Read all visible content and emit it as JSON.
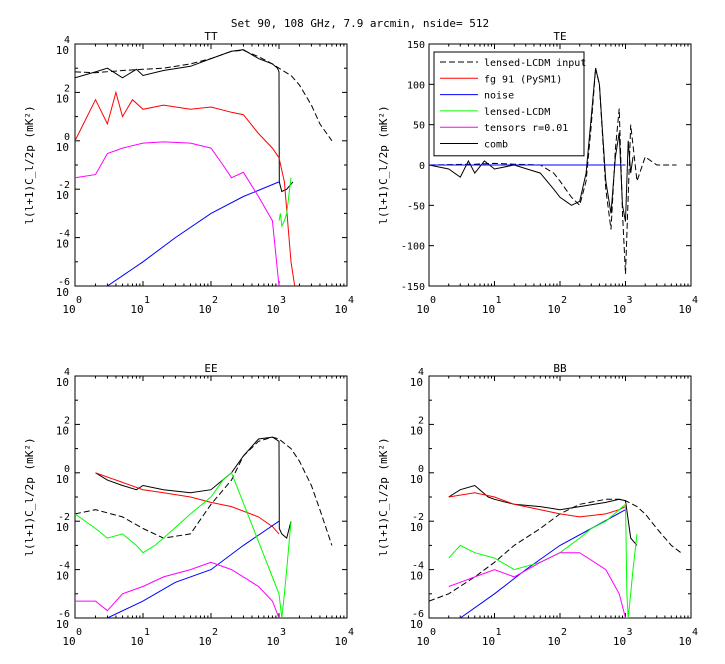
{
  "figure": {
    "title": "Set 90, 108 GHz,  7.9 arcmin, nside= 512"
  },
  "colors": {
    "lensed_input": "#000000",
    "fg": "#ff0000",
    "noise": "#0000ff",
    "lensed": "#00ff00",
    "tensors": "#ff00ff",
    "comb": "#000000"
  },
  "chart_data": [
    {
      "id": "TT",
      "type": "line",
      "title": "TT",
      "xscale": "log",
      "xlim": [
        1,
        10000
      ],
      "yscale": "log",
      "ylim": [
        1e-06,
        10000
      ],
      "xtick_labels": [
        "0",
        "1",
        "2",
        "3",
        "4"
      ],
      "ytick_labels": [
        "-6",
        "-4",
        "-2",
        "0",
        "2",
        "4"
      ],
      "ylabel": "l(l+1)C_l/2p (mK²)",
      "legend": null,
      "series": [
        {
          "key": "lensed_input",
          "dash": true,
          "x": [
            1,
            2,
            5,
            10,
            20,
            50,
            100,
            200,
            300,
            500,
            800,
            1000,
            1500,
            2000,
            3000,
            4000,
            6000
          ],
          "y": [
            700,
            650,
            800,
            900,
            1000,
            1500,
            2500,
            5000,
            5500,
            3000,
            1500,
            1000,
            500,
            200,
            30,
            5,
            1
          ]
        },
        {
          "key": "comb",
          "x": [
            1,
            2,
            3,
            5,
            8,
            10,
            20,
            50,
            100,
            200,
            300,
            500,
            800,
            950,
            1000,
            1010,
            1100,
            1300,
            1600
          ],
          "y": [
            400,
            700,
            1000,
            400,
            900,
            500,
            800,
            1200,
            2500,
            5000,
            5800,
            2500,
            1500,
            1000,
            700,
            0.02,
            0.008,
            0.01,
            0.02
          ]
        },
        {
          "key": "fg",
          "x": [
            1,
            2,
            3,
            4,
            5,
            7,
            10,
            20,
            50,
            100,
            200,
            300,
            500,
            800,
            1000,
            1200,
            1500,
            1700
          ],
          "y": [
            1,
            50,
            5,
            100,
            10,
            50,
            20,
            30,
            20,
            25,
            15,
            12,
            2,
            0.5,
            0.2,
            0.02,
            1e-05,
            1e-06
          ]
        },
        {
          "key": "noise",
          "x": [
            3,
            10,
            30,
            100,
            300,
            1000
          ],
          "y": [
            1e-06,
            1e-05,
            0.0001,
            0.001,
            0.005,
            0.02
          ]
        },
        {
          "key": "lensed",
          "x": [
            1000,
            1050,
            1100,
            1200,
            1300,
            1500
          ],
          "y": [
            0.0005,
            0.001,
            0.0003,
            0.0005,
            0.001,
            0.03
          ]
        },
        {
          "key": "tensors",
          "x": [
            1,
            2,
            3,
            5,
            10,
            20,
            50,
            100,
            150,
            200,
            300,
            500,
            800,
            1000
          ],
          "y": [
            0.03,
            0.04,
            0.3,
            0.5,
            0.8,
            0.9,
            0.8,
            0.5,
            0.1,
            0.03,
            0.05,
            0.005,
            0.0005,
            1e-06
          ]
        }
      ]
    },
    {
      "id": "TE",
      "type": "line",
      "title": "TE",
      "xscale": "log",
      "xlim": [
        1,
        10000
      ],
      "yscale": "linear",
      "ylim": [
        -150,
        150
      ],
      "xtick_labels": [
        "0",
        "1",
        "2",
        "3",
        "4"
      ],
      "ytick_labels": [
        "-150",
        "-100",
        "-50",
        "0",
        "50",
        "100",
        "150"
      ],
      "ylabel": "l(l+1)C_l/2p (mK²)",
      "legend": {
        "position": "top-left",
        "entries": [
          {
            "key": "lensed_input",
            "label": "lensed-LCDM input",
            "dash": true
          },
          {
            "key": "fg",
            "label": "fg 91 (PySM1)"
          },
          {
            "key": "noise",
            "label": "noise"
          },
          {
            "key": "lensed",
            "label": "lensed-LCDM"
          },
          {
            "key": "tensors",
            "label": "tensors r=0.01"
          },
          {
            "key": "comb",
            "label": "comb"
          }
        ]
      },
      "series": [
        {
          "key": "lensed_input",
          "dash": true,
          "x": [
            1,
            5,
            10,
            20,
            50,
            80,
            100,
            150,
            200,
            250,
            300,
            350,
            400,
            500,
            600,
            700,
            800,
            900,
            1000,
            1200,
            1500,
            2000,
            3000,
            6000
          ],
          "y": [
            0,
            1,
            2,
            1,
            0,
            -10,
            -20,
            -40,
            -50,
            -20,
            50,
            120,
            100,
            -30,
            -80,
            20,
            70,
            -60,
            -135,
            50,
            -20,
            10,
            0,
            0
          ]
        },
        {
          "key": "comb",
          "x": [
            1,
            2,
            3,
            4,
            5,
            7,
            10,
            20,
            50,
            80,
            100,
            150,
            200,
            250,
            300,
            350,
            400,
            500,
            600,
            700,
            800,
            900,
            1000,
            1100,
            1200,
            1300
          ],
          "y": [
            0,
            -5,
            -15,
            5,
            -10,
            5,
            -5,
            0,
            -10,
            -30,
            -40,
            -50,
            -45,
            -10,
            60,
            120,
            100,
            -20,
            -60,
            10,
            40,
            -50,
            -70,
            30,
            -10,
            10
          ]
        },
        {
          "key": "fg",
          "x": [
            1,
            10,
            100,
            1000
          ],
          "y": [
            0,
            0,
            0,
            0
          ]
        },
        {
          "key": "lensed",
          "x": [
            1,
            10,
            100,
            1000
          ],
          "y": [
            0,
            0,
            0,
            0
          ]
        },
        {
          "key": "tensors",
          "x": [
            1,
            10,
            100,
            1000
          ],
          "y": [
            0,
            0,
            0,
            0
          ]
        },
        {
          "key": "noise",
          "x": [
            1,
            10,
            100,
            1000
          ],
          "y": [
            0,
            0,
            0,
            0
          ]
        }
      ]
    },
    {
      "id": "EE",
      "type": "line",
      "title": "EE",
      "xscale": "log",
      "xlim": [
        1,
        10000
      ],
      "yscale": "log",
      "ylim": [
        1e-06,
        10000
      ],
      "xtick_labels": [
        "0",
        "1",
        "2",
        "3",
        "4"
      ],
      "ytick_labels": [
        "-6",
        "-4",
        "-2",
        "0",
        "2",
        "4"
      ],
      "ylabel": "l(l+1)C_l/2p (mK²)",
      "legend": null,
      "series": [
        {
          "key": "lensed_input",
          "dash": true,
          "x": [
            1,
            2,
            5,
            10,
            20,
            50,
            100,
            200,
            300,
            500,
            800,
            1000,
            1500,
            2000,
            3000,
            4000,
            6000
          ],
          "y": [
            0.02,
            0.03,
            0.015,
            0.005,
            0.002,
            0.003,
            0.05,
            0.5,
            5,
            20,
            30,
            25,
            10,
            3,
            0.3,
            0.03,
            0.001
          ]
        },
        {
          "key": "comb",
          "x": [
            2,
            3,
            5,
            8,
            10,
            20,
            50,
            100,
            200,
            300,
            500,
            800,
            1000,
            1010,
            1100,
            1300,
            1500
          ],
          "y": [
            1,
            0.5,
            0.3,
            0.2,
            0.3,
            0.2,
            0.15,
            0.2,
            1,
            5,
            25,
            30,
            20,
            0.005,
            0.003,
            0.002,
            0.01
          ]
        },
        {
          "key": "fg",
          "x": [
            2,
            5,
            10,
            20,
            50,
            100,
            200,
            500,
            800,
            1000
          ],
          "y": [
            1,
            0.4,
            0.2,
            0.15,
            0.1,
            0.06,
            0.04,
            0.015,
            0.006,
            0.003
          ]
        },
        {
          "key": "noise",
          "x": [
            3,
            10,
            30,
            100,
            300,
            1000
          ],
          "y": [
            1e-06,
            5e-06,
            3e-05,
            0.0001,
            0.001,
            0.01
          ]
        },
        {
          "key": "lensed",
          "x": [
            1,
            2,
            3,
            5,
            8,
            10,
            15,
            20,
            50,
            100,
            150,
            200,
            1000,
            1100,
            1200,
            1300,
            1500
          ],
          "y": [
            0.02,
            0.005,
            0.002,
            0.003,
            0.001,
            0.0005,
            0.001,
            0.002,
            0.02,
            0.1,
            0.5,
            1,
            1e-05,
            1e-06,
            1e-05,
            0.0001,
            0.01
          ]
        },
        {
          "key": "tensors",
          "x": [
            1,
            2,
            3,
            5,
            10,
            20,
            50,
            100,
            200,
            300,
            500,
            800,
            1000
          ],
          "y": [
            5e-06,
            5e-06,
            2e-06,
            1e-05,
            2e-05,
            5e-05,
            0.0001,
            0.0002,
            0.0001,
            5e-05,
            2e-05,
            5e-06,
            1e-06
          ]
        }
      ]
    },
    {
      "id": "BB",
      "type": "line",
      "title": "BB",
      "xscale": "log",
      "xlim": [
        1,
        10000
      ],
      "yscale": "log",
      "ylim": [
        1e-06,
        10000
      ],
      "xtick_labels": [
        "0",
        "1",
        "2",
        "3",
        "4"
      ],
      "ytick_labels": [
        "-6",
        "-4",
        "-2",
        "0",
        "2",
        "4"
      ],
      "ylabel": "l(l+1)C_l/2p (mK²)",
      "legend": null,
      "series": [
        {
          "key": "lensed_input",
          "dash": true,
          "x": [
            1,
            2,
            5,
            10,
            20,
            50,
            100,
            200,
            500,
            800,
            1000,
            1500,
            2000,
            3000,
            5000,
            7000
          ],
          "y": [
            5e-06,
            1e-05,
            5e-05,
            0.0002,
            0.001,
            0.005,
            0.02,
            0.05,
            0.08,
            0.08,
            0.07,
            0.04,
            0.02,
            0.005,
            0.001,
            0.0005
          ]
        },
        {
          "key": "comb",
          "x": [
            2,
            3,
            5,
            8,
            10,
            20,
            50,
            100,
            200,
            500,
            800,
            1000,
            1200,
            1500
          ],
          "y": [
            0.1,
            0.2,
            0.3,
            0.1,
            0.08,
            0.05,
            0.04,
            0.03,
            0.04,
            0.06,
            0.08,
            0.07,
            0.002,
            0.001
          ]
        },
        {
          "key": "fg",
          "x": [
            2,
            5,
            10,
            20,
            50,
            100,
            200,
            500,
            800,
            1000
          ],
          "y": [
            0.1,
            0.15,
            0.1,
            0.05,
            0.03,
            0.02,
            0.015,
            0.02,
            0.03,
            0.04
          ]
        },
        {
          "key": "noise",
          "x": [
            3,
            10,
            30,
            100,
            300,
            1000
          ],
          "y": [
            1e-06,
            1e-05,
            0.0001,
            0.001,
            0.005,
            0.03
          ]
        },
        {
          "key": "lensed",
          "x": [
            2,
            3,
            5,
            10,
            20,
            50,
            100,
            200,
            300,
            500,
            800,
            1000,
            1050,
            1100,
            1200,
            1300,
            1500
          ],
          "y": [
            0.0003,
            0.001,
            0.0005,
            0.0003,
            0.0001,
            0.0002,
            0.0005,
            0.002,
            0.005,
            0.01,
            0.03,
            0.05,
            1e-05,
            1e-06,
            1e-05,
            0.0001,
            0.003
          ]
        },
        {
          "key": "tensors",
          "x": [
            2,
            3,
            5,
            10,
            20,
            50,
            100,
            200,
            500,
            800,
            1000,
            1100
          ],
          "y": [
            2e-05,
            3e-05,
            5e-05,
            0.0001,
            5e-05,
            0.0002,
            0.0005,
            0.0005,
            0.0001,
            1e-05,
            1e-06,
            1e-06
          ]
        }
      ]
    }
  ]
}
